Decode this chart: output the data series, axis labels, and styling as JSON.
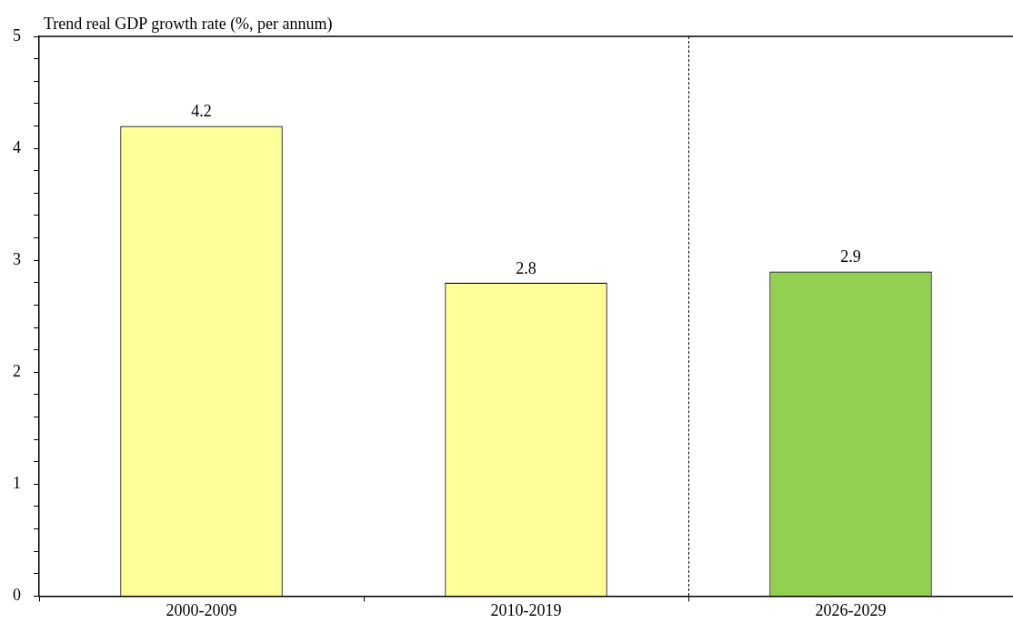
{
  "chart_data": {
    "type": "bar",
    "title": "Trend real GDP growth rate (%, per annum)",
    "categories": [
      "2000-2009",
      "2010-2019",
      "2026-2029"
    ],
    "values": [
      4.2,
      2.8,
      2.9
    ],
    "colors": [
      "#ffff99",
      "#ffff99",
      "#92d050"
    ],
    "ylim": [
      0,
      5
    ],
    "yticks": [
      0,
      {
        "value": 0.2,
        "label": null
      },
      {
        "value": 0.4,
        "label": null
      },
      {
        "value": 0.6,
        "label": null
      },
      {
        "value": 0.8,
        "label": null
      },
      1,
      {
        "value": 1.2,
        "label": null
      },
      {
        "value": 1.4,
        "label": null
      },
      {
        "value": 1.6,
        "label": null
      },
      {
        "value": 1.8,
        "label": null
      },
      2,
      {
        "value": 2.2,
        "label": null
      },
      {
        "value": 2.4,
        "label": null
      },
      {
        "value": 2.6,
        "label": null
      },
      {
        "value": 2.8,
        "label": null
      },
      3,
      {
        "value": 3.2,
        "label": null
      },
      {
        "value": 3.4,
        "label": null
      },
      {
        "value": 3.6,
        "label": null
      },
      {
        "value": 3.8,
        "label": null
      },
      4,
      {
        "value": 4.2,
        "label": null
      },
      {
        "value": 4.4,
        "label": null
      },
      {
        "value": 4.6,
        "label": null
      },
      {
        "value": 4.8,
        "label": null
      },
      5
    ],
    "data_labels": true,
    "grid": false,
    "legend": false
  }
}
